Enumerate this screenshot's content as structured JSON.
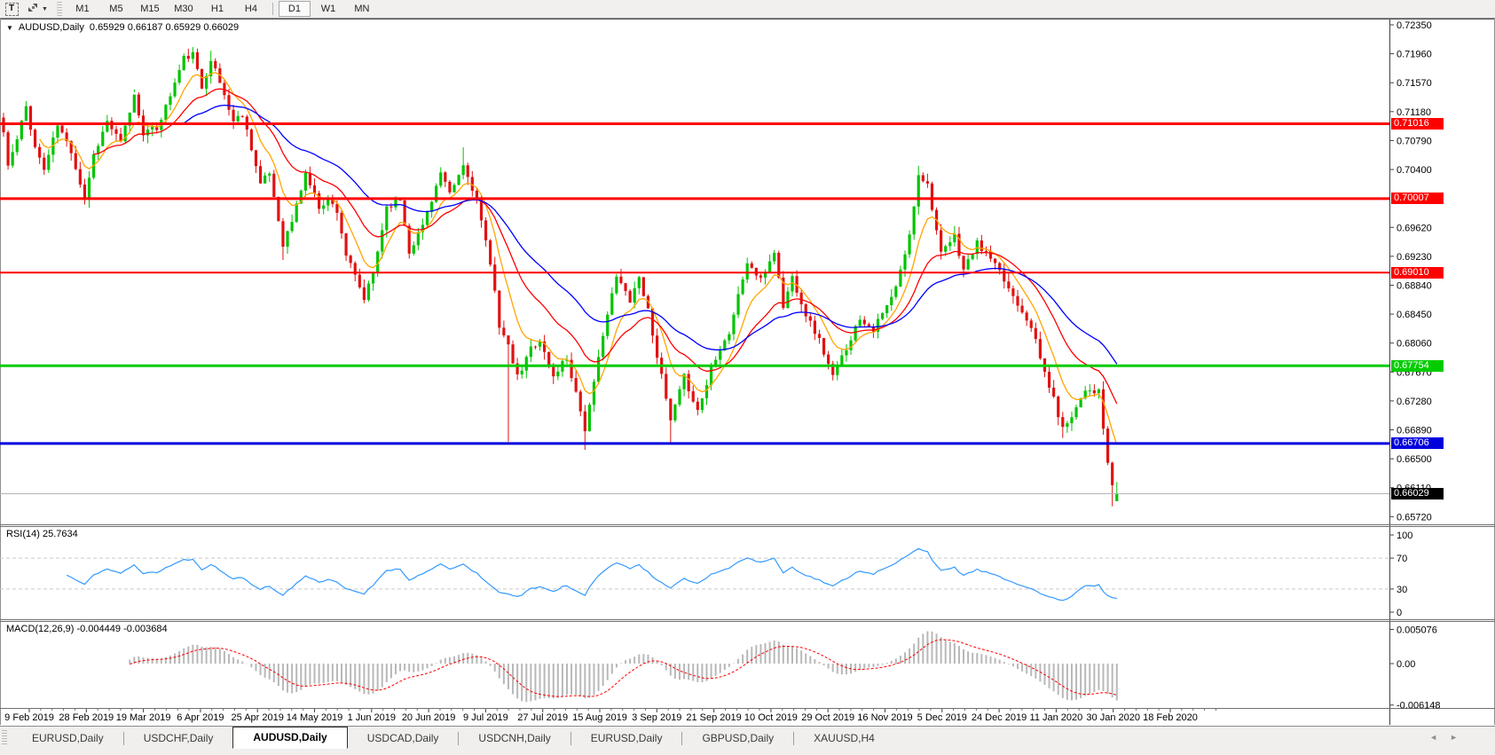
{
  "toolbar": {
    "text_tool_label": "T",
    "dropdown_caret": "▼",
    "timeframes": [
      "M1",
      "M5",
      "M15",
      "M30",
      "H1",
      "H4",
      "D1",
      "W1",
      "MN"
    ],
    "active_timeframe": "D1"
  },
  "chart": {
    "title": {
      "dropdown": "▼",
      "symbol_period": "AUDUSD,Daily",
      "ohlc": "0.65929 0.66187 0.65929 0.66029"
    },
    "rsi_label": "RSI(14) 25.7634",
    "macd_label": "MACD(12,26,9) -0.004449 -0.003684"
  },
  "chart_data": {
    "type": "candlestick",
    "symbol": "AUDUSD",
    "timeframe": "Daily",
    "bull_color": "#00c400",
    "bear_color": "#e01212",
    "num_bars": 248,
    "first_open": 0.711,
    "noise": 0.0009,
    "seed": 11,
    "close_anchors": [
      [
        0,
        0.709
      ],
      [
        1,
        0.7045
      ],
      [
        3,
        0.708
      ],
      [
        5,
        0.7125
      ],
      [
        7,
        0.707
      ],
      [
        9,
        0.704
      ],
      [
        12,
        0.71
      ],
      [
        15,
        0.7065
      ],
      [
        18,
        0.7
      ],
      [
        20,
        0.706
      ],
      [
        23,
        0.7105
      ],
      [
        26,
        0.7075
      ],
      [
        29,
        0.714
      ],
      [
        31,
        0.709
      ],
      [
        34,
        0.7095
      ],
      [
        37,
        0.714
      ],
      [
        40,
        0.719
      ],
      [
        42,
        0.7195
      ],
      [
        44,
        0.715
      ],
      [
        46,
        0.719
      ],
      [
        49,
        0.714
      ],
      [
        51,
        0.7105
      ],
      [
        53,
        0.7115
      ],
      [
        55,
        0.707
      ],
      [
        57,
        0.702
      ],
      [
        59,
        0.7035
      ],
      [
        62,
        0.694
      ],
      [
        64,
        0.697
      ],
      [
        67,
        0.7035
      ],
      [
        70,
        0.699
      ],
      [
        72,
        0.7
      ],
      [
        74,
        0.6985
      ],
      [
        76,
        0.6925
      ],
      [
        78,
        0.6895
      ],
      [
        80,
        0.6865
      ],
      [
        82,
        0.69
      ],
      [
        85,
        0.699
      ],
      [
        88,
        0.7
      ],
      [
        90,
        0.693
      ],
      [
        93,
        0.6965
      ],
      [
        95,
        0.7
      ],
      [
        97,
        0.7035
      ],
      [
        99,
        0.7005
      ],
      [
        102,
        0.7045
      ],
      [
        105,
        0.7
      ],
      [
        107,
        0.694
      ],
      [
        109,
        0.688
      ],
      [
        110,
        0.683
      ],
      [
        112,
        0.68
      ],
      [
        114,
        0.676
      ],
      [
        115,
        0.677
      ],
      [
        117,
        0.68
      ],
      [
        119,
        0.681
      ],
      [
        121,
        0.6775
      ],
      [
        122,
        0.676
      ],
      [
        124,
        0.678
      ],
      [
        125,
        0.6785
      ],
      [
        127,
        0.674
      ],
      [
        129,
        0.669
      ],
      [
        131,
        0.675
      ],
      [
        133,
        0.682
      ],
      [
        136,
        0.6895
      ],
      [
        139,
        0.6865
      ],
      [
        141,
        0.6895
      ],
      [
        143,
        0.685
      ],
      [
        145,
        0.679
      ],
      [
        147,
        0.673
      ],
      [
        148,
        0.67
      ],
      [
        150,
        0.674
      ],
      [
        151,
        0.676
      ],
      [
        153,
        0.673
      ],
      [
        154,
        0.6715
      ],
      [
        156,
        0.675
      ],
      [
        157,
        0.6775
      ],
      [
        159,
        0.68
      ],
      [
        161,
        0.682
      ],
      [
        163,
        0.687
      ],
      [
        165,
        0.6915
      ],
      [
        168,
        0.689
      ],
      [
        171,
        0.693
      ],
      [
        173,
        0.6855
      ],
      [
        175,
        0.6895
      ],
      [
        178,
        0.6845
      ],
      [
        181,
        0.681
      ],
      [
        184,
        0.676
      ],
      [
        187,
        0.68
      ],
      [
        190,
        0.684
      ],
      [
        193,
        0.6825
      ],
      [
        196,
        0.6855
      ],
      [
        198,
        0.688
      ],
      [
        201,
        0.695
      ],
      [
        203,
        0.7035
      ],
      [
        205,
        0.702
      ],
      [
        206,
        0.699
      ],
      [
        208,
        0.6925
      ],
      [
        211,
        0.695
      ],
      [
        213,
        0.6905
      ],
      [
        216,
        0.694
      ],
      [
        219,
        0.692
      ],
      [
        222,
        0.689
      ],
      [
        225,
        0.686
      ],
      [
        228,
        0.683
      ],
      [
        230,
        0.6785
      ],
      [
        233,
        0.673
      ],
      [
        235,
        0.669
      ],
      [
        238,
        0.672
      ],
      [
        240,
        0.6745
      ],
      [
        243,
        0.674
      ],
      [
        244,
        0.669
      ],
      [
        245,
        0.6645
      ],
      [
        246,
        0.661
      ],
      [
        247,
        0.66029
      ]
    ],
    "wick_lows": {
      "29": 0.7148,
      "62": 0.6918,
      "112": 0.6673,
      "129": 0.6662,
      "148": 0.66706,
      "235": 0.6678,
      "246": 0.6586
    },
    "wick_highs": {
      "42": 0.7205,
      "46": 0.72,
      "102": 0.707,
      "203": 0.7045
    },
    "last_candle": {
      "open": 0.65929,
      "high": 0.66187,
      "low": 0.65929,
      "close": 0.66029
    },
    "moving_averages": [
      {
        "name": "fast-ma",
        "period": 8,
        "color": "#ffa500"
      },
      {
        "name": "medium-ma",
        "period": 20,
        "color": "#ff0000"
      },
      {
        "name": "slow-ma",
        "period": 40,
        "color": "#0000ff"
      }
    ],
    "horizontal_levels": [
      {
        "label": "0.71016",
        "price": 0.71016,
        "color": "#ff0000",
        "width": 3
      },
      {
        "label": "0.70007",
        "price": 0.70007,
        "color": "#ff0000",
        "width": 3
      },
      {
        "label": "0.69010",
        "price": 0.6901,
        "color": "#ff0000",
        "width": 2
      },
      {
        "label": "0.67754",
        "price": 0.67754,
        "color": "#00cc00",
        "width": 3
      },
      {
        "label": "0.66706",
        "price": 0.66706,
        "color": "#0000dd",
        "width": 3
      }
    ],
    "current_price": {
      "label": "0.66029",
      "price": 0.66029,
      "badge_color": "#000000",
      "line_color": "#b4b4b4"
    },
    "price_axis_ticks": [
      "0.72350",
      "0.71960",
      "0.71570",
      "0.71180",
      "0.70790",
      "0.70400",
      "0.69620",
      "0.69230",
      "0.68840",
      "0.68450",
      "0.68060",
      "0.67670",
      "0.67280",
      "0.66890",
      "0.66500",
      "0.66110",
      "0.65720"
    ],
    "date_labels": [
      "9 Feb 2019",
      "28 Feb 2019",
      "19 Mar 2019",
      "6 Apr 2019",
      "25 Apr 2019",
      "14 May 2019",
      "1 Jun 2019",
      "20 Jun 2019",
      "9 Jul 2019",
      "27 Jul 2019",
      "15 Aug 2019",
      "3 Sep 2019",
      "21 Sep 2019",
      "10 Oct 2019",
      "29 Oct 2019",
      "16 Nov 2019",
      "5 Dec 2019",
      "24 Dec 2019",
      "11 Jan 2020",
      "30 Jan 2020",
      "18 Feb 2020"
    ],
    "rsi": {
      "period": 14,
      "value": 25.7634,
      "color": "#3399ff",
      "ticks": [
        "100",
        "70",
        "30",
        "0"
      ],
      "dashed_levels": [
        70,
        30
      ]
    },
    "macd": {
      "fast": 12,
      "slow": 26,
      "signal_period": 9,
      "value": -0.004449,
      "signal_value": -0.003684,
      "hist_color": "#b8b8b8",
      "signal_color": "#ff0000",
      "ticks": [
        "0.005076",
        "0.00",
        "-0.006148"
      ]
    }
  },
  "tabbar": {
    "tabs": [
      "EURUSD,Daily",
      "USDCHF,Daily",
      "AUDUSD,Daily",
      "USDCAD,Daily",
      "USDCNH,Daily",
      "EURUSD,Daily",
      "GBPUSD,Daily",
      "XAUUSD,H4"
    ],
    "active_index": 2,
    "scroll_left": "◄",
    "scroll_right": "►"
  }
}
